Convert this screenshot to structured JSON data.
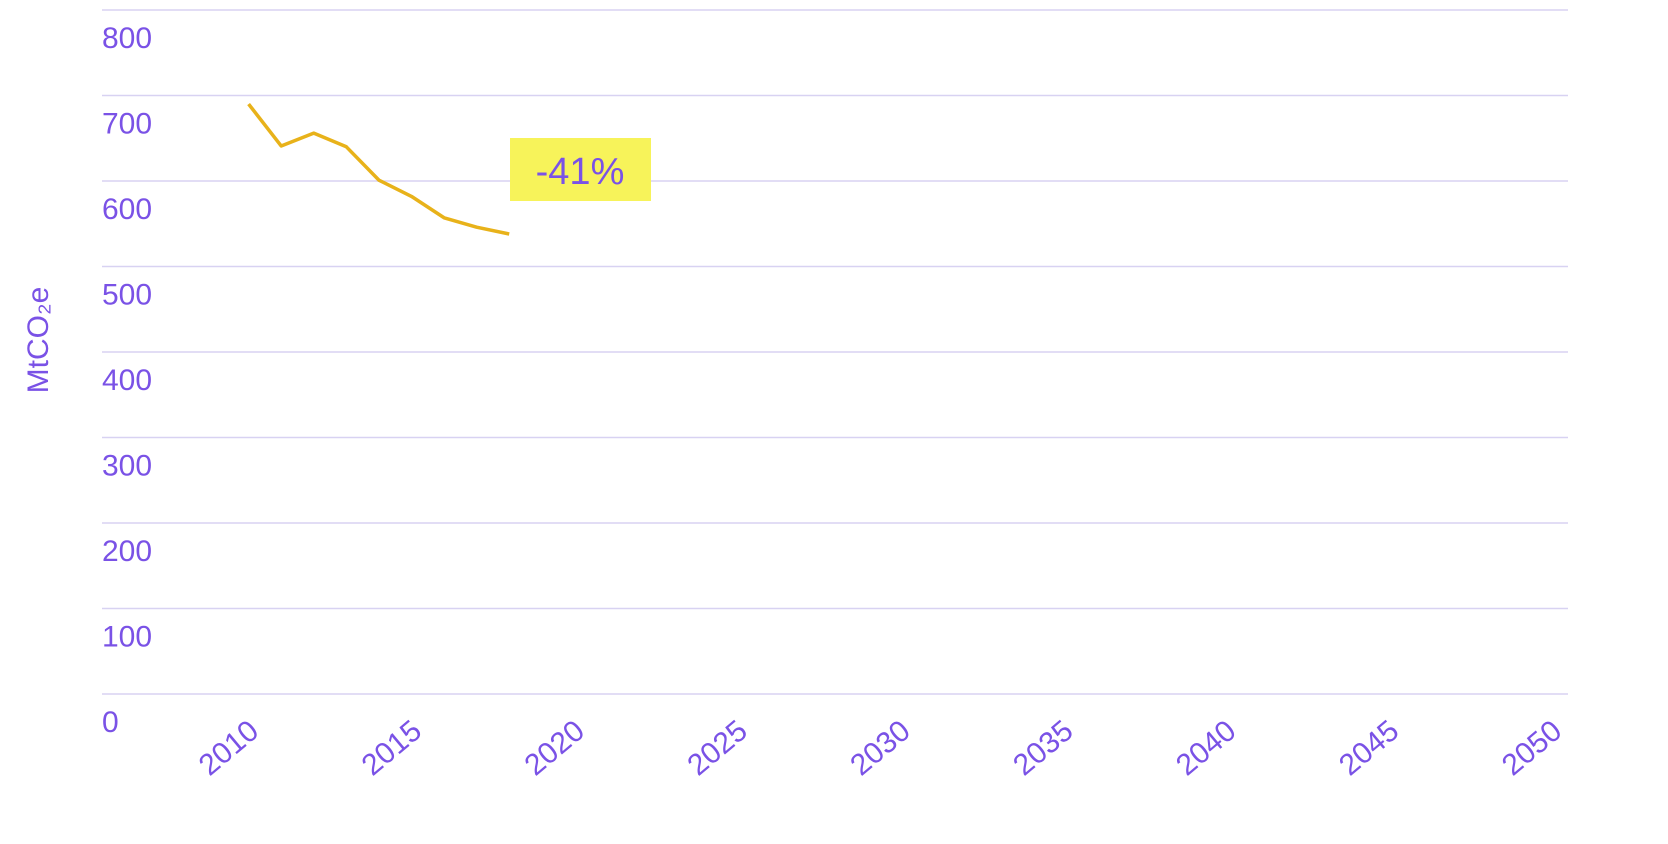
{
  "chart_data": {
    "type": "line",
    "y_label": "MtCO₂e",
    "x": [
      2010,
      2011,
      2012,
      2013,
      2014,
      2015,
      2016,
      2017,
      2018
    ],
    "series": [
      {
        "color": "#e8b21a",
        "values": [
          690,
          641,
          656,
          640,
          601,
          582,
          557,
          546,
          538
        ]
      }
    ],
    "xlim": [
      2005.5,
      2050.5
    ],
    "xticks": [
      2010,
      2015,
      2020,
      2025,
      2030,
      2035,
      2040,
      2045,
      2050
    ],
    "ylim": [
      0,
      800
    ],
    "yticks": [
      0,
      100,
      200,
      300,
      400,
      500,
      600,
      700,
      800
    ],
    "grid": true,
    "annotation": "-41%"
  }
}
